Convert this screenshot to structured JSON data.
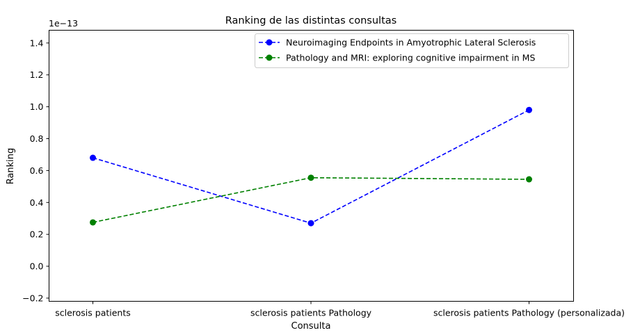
{
  "chart_data": {
    "type": "line",
    "title": "Ranking de las distintas consultas",
    "xlabel": "Consulta",
    "ylabel": "Ranking",
    "y_offset_text": "1e−13",
    "categories": [
      "sclerosis patients",
      "sclerosis patients Pathology",
      "sclerosis patients Pathology (personalizada)"
    ],
    "ylim": [
      -0.22,
      1.48
    ],
    "yticks": [
      -0.2,
      0.0,
      0.2,
      0.4,
      0.6,
      0.8,
      1.0,
      1.2,
      1.4
    ],
    "ytick_labels": [
      "−0.2",
      "0.0",
      "0.2",
      "0.4",
      "0.6",
      "0.8",
      "1.0",
      "1.2",
      "1.4"
    ],
    "grid": false,
    "legend_position": "top-right",
    "series": [
      {
        "name": "Neuroimaging Endpoints in Amyotrophic Lateral Sclerosis",
        "color": "#0000ff",
        "line_style": "dashed",
        "marker": "circle",
        "values": [
          0.68,
          0.27,
          0.98
        ]
      },
      {
        "name": "Pathology and MRI: exploring cognitive impairment in MS",
        "color": "#008000",
        "line_style": "dashed",
        "marker": "circle",
        "values": [
          0.275,
          0.555,
          0.545
        ]
      }
    ]
  }
}
